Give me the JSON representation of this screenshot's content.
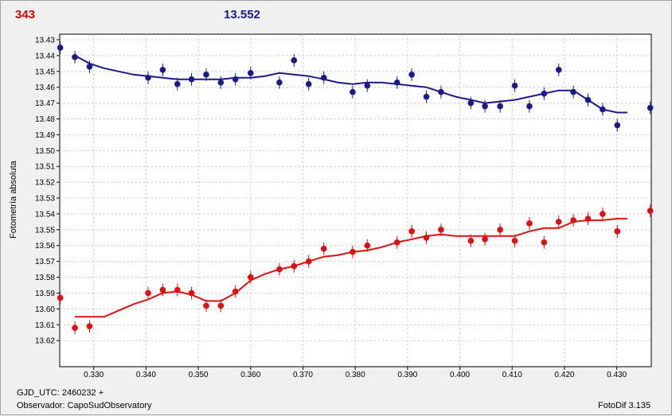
{
  "header": {
    "count": "343",
    "value": "13.552"
  },
  "footer": {
    "gjd": "GJD_UTC: 2460232 +",
    "observer": "Observador: CapoSudObservatory",
    "version": "FotoDif 3.135"
  },
  "chart_data": {
    "type": "scatter",
    "title": "",
    "xlabel": "",
    "ylabel": "Fotometría absoluta",
    "xlim": [
      0.3235,
      0.4366
    ],
    "ylim": [
      13.4265,
      13.6365
    ],
    "y_inverted": true,
    "grid": true,
    "x_ticks": [
      "0.330",
      "0.340",
      "0.350",
      "0.360",
      "0.370",
      "0.380",
      "0.390",
      "0.400",
      "0.410",
      "0.420",
      "0.430"
    ],
    "y_ticks": [
      "13.43",
      "13.44",
      "13.45",
      "13.46",
      "13.47",
      "13.48",
      "13.49",
      "13.50",
      "13.51",
      "13.52",
      "13.53",
      "13.54",
      "13.55",
      "13.56",
      "13.57",
      "13.58",
      "13.59",
      "13.60",
      "13.61",
      "13.62"
    ],
    "series": [
      {
        "color": "#1a1a8c",
        "points": [
          [
            0.3236,
            13.435
          ],
          [
            0.3264,
            13.441
          ],
          [
            0.3292,
            13.447
          ],
          [
            0.3404,
            13.454
          ],
          [
            0.3432,
            13.449
          ],
          [
            0.346,
            13.458
          ],
          [
            0.3487,
            13.455
          ],
          [
            0.3515,
            13.452
          ],
          [
            0.3543,
            13.457
          ],
          [
            0.3571,
            13.455
          ],
          [
            0.36,
            13.451
          ],
          [
            0.3655,
            13.457
          ],
          [
            0.3683,
            13.443
          ],
          [
            0.3711,
            13.458
          ],
          [
            0.374,
            13.454
          ],
          [
            0.3795,
            13.463
          ],
          [
            0.3823,
            13.459
          ],
          [
            0.388,
            13.457
          ],
          [
            0.3908,
            13.452
          ],
          [
            0.3936,
            13.466
          ],
          [
            0.3964,
            13.463
          ],
          [
            0.4021,
            13.47
          ],
          [
            0.4048,
            13.472
          ],
          [
            0.4077,
            13.472
          ],
          [
            0.4105,
            13.459
          ],
          [
            0.4133,
            13.472
          ],
          [
            0.4161,
            13.464
          ],
          [
            0.4189,
            13.449
          ],
          [
            0.4217,
            13.463
          ],
          [
            0.4245,
            13.468
          ],
          [
            0.4273,
            13.474
          ],
          [
            0.4301,
            13.484
          ],
          [
            0.4364,
            13.473
          ]
        ],
        "trend": [
          [
            0.3264,
            13.44
          ],
          [
            0.3292,
            13.445
          ],
          [
            0.332,
            13.448
          ],
          [
            0.3348,
            13.45
          ],
          [
            0.3376,
            13.452
          ],
          [
            0.3404,
            13.453
          ],
          [
            0.3432,
            13.454
          ],
          [
            0.346,
            13.455
          ],
          [
            0.3487,
            13.455
          ],
          [
            0.3515,
            13.455
          ],
          [
            0.3543,
            13.455
          ],
          [
            0.3571,
            13.454
          ],
          [
            0.36,
            13.454
          ],
          [
            0.3627,
            13.453
          ],
          [
            0.3655,
            13.451
          ],
          [
            0.3683,
            13.452
          ],
          [
            0.3711,
            13.453
          ],
          [
            0.374,
            13.455
          ],
          [
            0.3767,
            13.457
          ],
          [
            0.3795,
            13.458
          ],
          [
            0.3823,
            13.457
          ],
          [
            0.3851,
            13.457
          ],
          [
            0.388,
            13.458
          ],
          [
            0.3908,
            13.459
          ],
          [
            0.3936,
            13.46
          ],
          [
            0.3964,
            13.463
          ],
          [
            0.3992,
            13.466
          ],
          [
            0.4021,
            13.468
          ],
          [
            0.4048,
            13.47
          ],
          [
            0.4077,
            13.469
          ],
          [
            0.4105,
            13.468
          ],
          [
            0.4133,
            13.466
          ],
          [
            0.4161,
            13.464
          ],
          [
            0.4189,
            13.462
          ],
          [
            0.4217,
            13.462
          ],
          [
            0.4245,
            13.468
          ],
          [
            0.4273,
            13.474
          ],
          [
            0.4301,
            13.476
          ],
          [
            0.432,
            13.476
          ]
        ]
      },
      {
        "color": "#e01010",
        "points": [
          [
            0.3236,
            13.593
          ],
          [
            0.3264,
            13.612
          ],
          [
            0.3292,
            13.611
          ],
          [
            0.3404,
            13.59
          ],
          [
            0.3432,
            13.588
          ],
          [
            0.346,
            13.588
          ],
          [
            0.3487,
            13.59
          ],
          [
            0.3515,
            13.598
          ],
          [
            0.3543,
            13.598
          ],
          [
            0.3571,
            13.589
          ],
          [
            0.36,
            13.58
          ],
          [
            0.3655,
            13.575
          ],
          [
            0.3683,
            13.573
          ],
          [
            0.3711,
            13.57
          ],
          [
            0.374,
            13.562
          ],
          [
            0.3795,
            13.564
          ],
          [
            0.3823,
            13.56
          ],
          [
            0.388,
            13.558
          ],
          [
            0.3908,
            13.551
          ],
          [
            0.3936,
            13.555
          ],
          [
            0.3964,
            13.55
          ],
          [
            0.4021,
            13.557
          ],
          [
            0.4048,
            13.556
          ],
          [
            0.4077,
            13.55
          ],
          [
            0.4105,
            13.557
          ],
          [
            0.4133,
            13.546
          ],
          [
            0.4161,
            13.558
          ],
          [
            0.4189,
            13.545
          ],
          [
            0.4217,
            13.544
          ],
          [
            0.4245,
            13.543
          ],
          [
            0.4273,
            13.54
          ],
          [
            0.4301,
            13.551
          ],
          [
            0.4364,
            13.538
          ]
        ],
        "trend": [
          [
            0.3264,
            13.605
          ],
          [
            0.3292,
            13.605
          ],
          [
            0.332,
            13.605
          ],
          [
            0.3348,
            13.601
          ],
          [
            0.3376,
            13.597
          ],
          [
            0.3404,
            13.594
          ],
          [
            0.3432,
            13.59
          ],
          [
            0.346,
            13.589
          ],
          [
            0.3487,
            13.591
          ],
          [
            0.3515,
            13.595
          ],
          [
            0.3543,
            13.595
          ],
          [
            0.3571,
            13.59
          ],
          [
            0.36,
            13.582
          ],
          [
            0.3627,
            13.578
          ],
          [
            0.3655,
            13.575
          ],
          [
            0.3683,
            13.573
          ],
          [
            0.3711,
            13.57
          ],
          [
            0.374,
            13.567
          ],
          [
            0.3767,
            13.566
          ],
          [
            0.3795,
            13.564
          ],
          [
            0.3823,
            13.563
          ],
          [
            0.3851,
            13.561
          ],
          [
            0.388,
            13.558
          ],
          [
            0.3908,
            13.556
          ],
          [
            0.3936,
            13.554
          ],
          [
            0.3964,
            13.553
          ],
          [
            0.3992,
            13.554
          ],
          [
            0.4021,
            13.554
          ],
          [
            0.4048,
            13.554
          ],
          [
            0.4077,
            13.554
          ],
          [
            0.4105,
            13.554
          ],
          [
            0.4133,
            13.551
          ],
          [
            0.4161,
            13.549
          ],
          [
            0.4189,
            13.549
          ],
          [
            0.4217,
            13.545
          ],
          [
            0.4245,
            13.544
          ],
          [
            0.4273,
            13.544
          ],
          [
            0.4301,
            13.543
          ],
          [
            0.432,
            13.543
          ]
        ]
      }
    ]
  }
}
